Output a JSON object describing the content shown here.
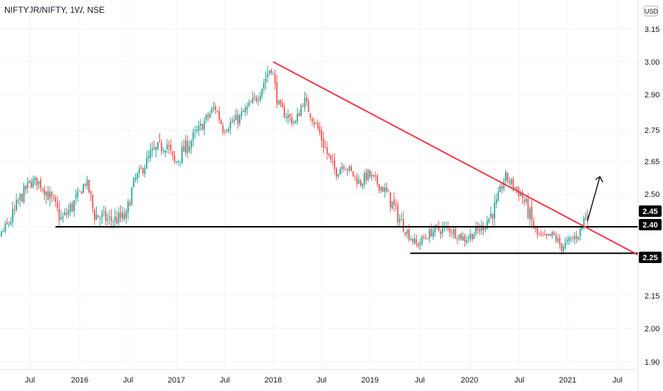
{
  "header": {
    "symbol": "NIFTYJR/NIFTY, 1W, NSE",
    "currency": "USD"
  },
  "colors": {
    "up": "#26a69a",
    "down": "#ef5350",
    "trendline": "#f23645",
    "level": "#000000",
    "arrow": "#131722",
    "grid": "#f0f3fa",
    "axis": "#787b86"
  },
  "chart_data": {
    "type": "candlestick",
    "y_axis": {
      "ticks": [
        "3.15",
        "3.00",
        "2.90",
        "2.75",
        "2.65",
        "2.50",
        "2.40",
        "2.15",
        "2.00",
        "1.90"
      ],
      "ylim": [
        1.87,
        3.18
      ]
    },
    "x_axis": {
      "ticks": [
        "Jul",
        "2016",
        "Jul",
        "2017",
        "Jul",
        "2018",
        "Jul",
        "2019",
        "Jul",
        "2020",
        "Jul",
        "2021",
        "Jul"
      ]
    },
    "tags": [
      "2.45",
      "2.40",
      "2.25"
    ],
    "support_lines": [
      {
        "level": 2.4,
        "from": "2015-10",
        "to": "2021-07"
      },
      {
        "level": 2.27,
        "from": "2019-06",
        "to": "2021-07"
      }
    ],
    "trendline": {
      "from": {
        "date": "2018-01",
        "value": 3.0
      },
      "to": {
        "date": "2021-07",
        "value": 2.33
      }
    },
    "arrow": {
      "from": {
        "date": "2021-04",
        "value": 2.42
      },
      "to": {
        "date": "2021-05",
        "value": 2.58
      }
    },
    "price_path": [
      {
        "date": "2015-01",
        "value": 2.3
      },
      {
        "date": "2015-03",
        "value": 2.34
      },
      {
        "date": "2015-05",
        "value": 2.44
      },
      {
        "date": "2015-07",
        "value": 2.55
      },
      {
        "date": "2015-08",
        "value": 2.56
      },
      {
        "date": "2015-10",
        "value": 2.47
      },
      {
        "date": "2015-11",
        "value": 2.42
      },
      {
        "date": "2016-01",
        "value": 2.49
      },
      {
        "date": "2016-02",
        "value": 2.56
      },
      {
        "date": "2016-03",
        "value": 2.44
      },
      {
        "date": "2016-05",
        "value": 2.42
      },
      {
        "date": "2016-07",
        "value": 2.43
      },
      {
        "date": "2016-08",
        "value": 2.56
      },
      {
        "date": "2016-10",
        "value": 2.67
      },
      {
        "date": "2016-12",
        "value": 2.71
      },
      {
        "date": "2017-01",
        "value": 2.64
      },
      {
        "date": "2017-02",
        "value": 2.68
      },
      {
        "date": "2017-04",
        "value": 2.75
      },
      {
        "date": "2017-06",
        "value": 2.85
      },
      {
        "date": "2017-07",
        "value": 2.76
      },
      {
        "date": "2017-09",
        "value": 2.8
      },
      {
        "date": "2017-11",
        "value": 2.88
      },
      {
        "date": "2018-01",
        "value": 2.99
      },
      {
        "date": "2018-02",
        "value": 2.84
      },
      {
        "date": "2018-04",
        "value": 2.78
      },
      {
        "date": "2018-05",
        "value": 2.88
      },
      {
        "date": "2018-07",
        "value": 2.74
      },
      {
        "date": "2018-09",
        "value": 2.6
      },
      {
        "date": "2018-10",
        "value": 2.64
      },
      {
        "date": "2018-12",
        "value": 2.55
      },
      {
        "date": "2019-01",
        "value": 2.59
      },
      {
        "date": "2019-03",
        "value": 2.52
      },
      {
        "date": "2019-05",
        "value": 2.42
      },
      {
        "date": "2019-07",
        "value": 2.31
      },
      {
        "date": "2019-09",
        "value": 2.38
      },
      {
        "date": "2019-11",
        "value": 2.39
      },
      {
        "date": "2020-01",
        "value": 2.34
      },
      {
        "date": "2020-03",
        "value": 2.39
      },
      {
        "date": "2020-05",
        "value": 2.47
      },
      {
        "date": "2020-06",
        "value": 2.58
      },
      {
        "date": "2020-08",
        "value": 2.5
      },
      {
        "date": "2020-09",
        "value": 2.44
      },
      {
        "date": "2020-10",
        "value": 2.36
      },
      {
        "date": "2020-11",
        "value": 2.34
      },
      {
        "date": "2020-12",
        "value": 2.36
      },
      {
        "date": "2021-01",
        "value": 2.3
      },
      {
        "date": "2021-02",
        "value": 2.33
      },
      {
        "date": "2021-03",
        "value": 2.36
      },
      {
        "date": "2021-04",
        "value": 2.44
      }
    ]
  }
}
